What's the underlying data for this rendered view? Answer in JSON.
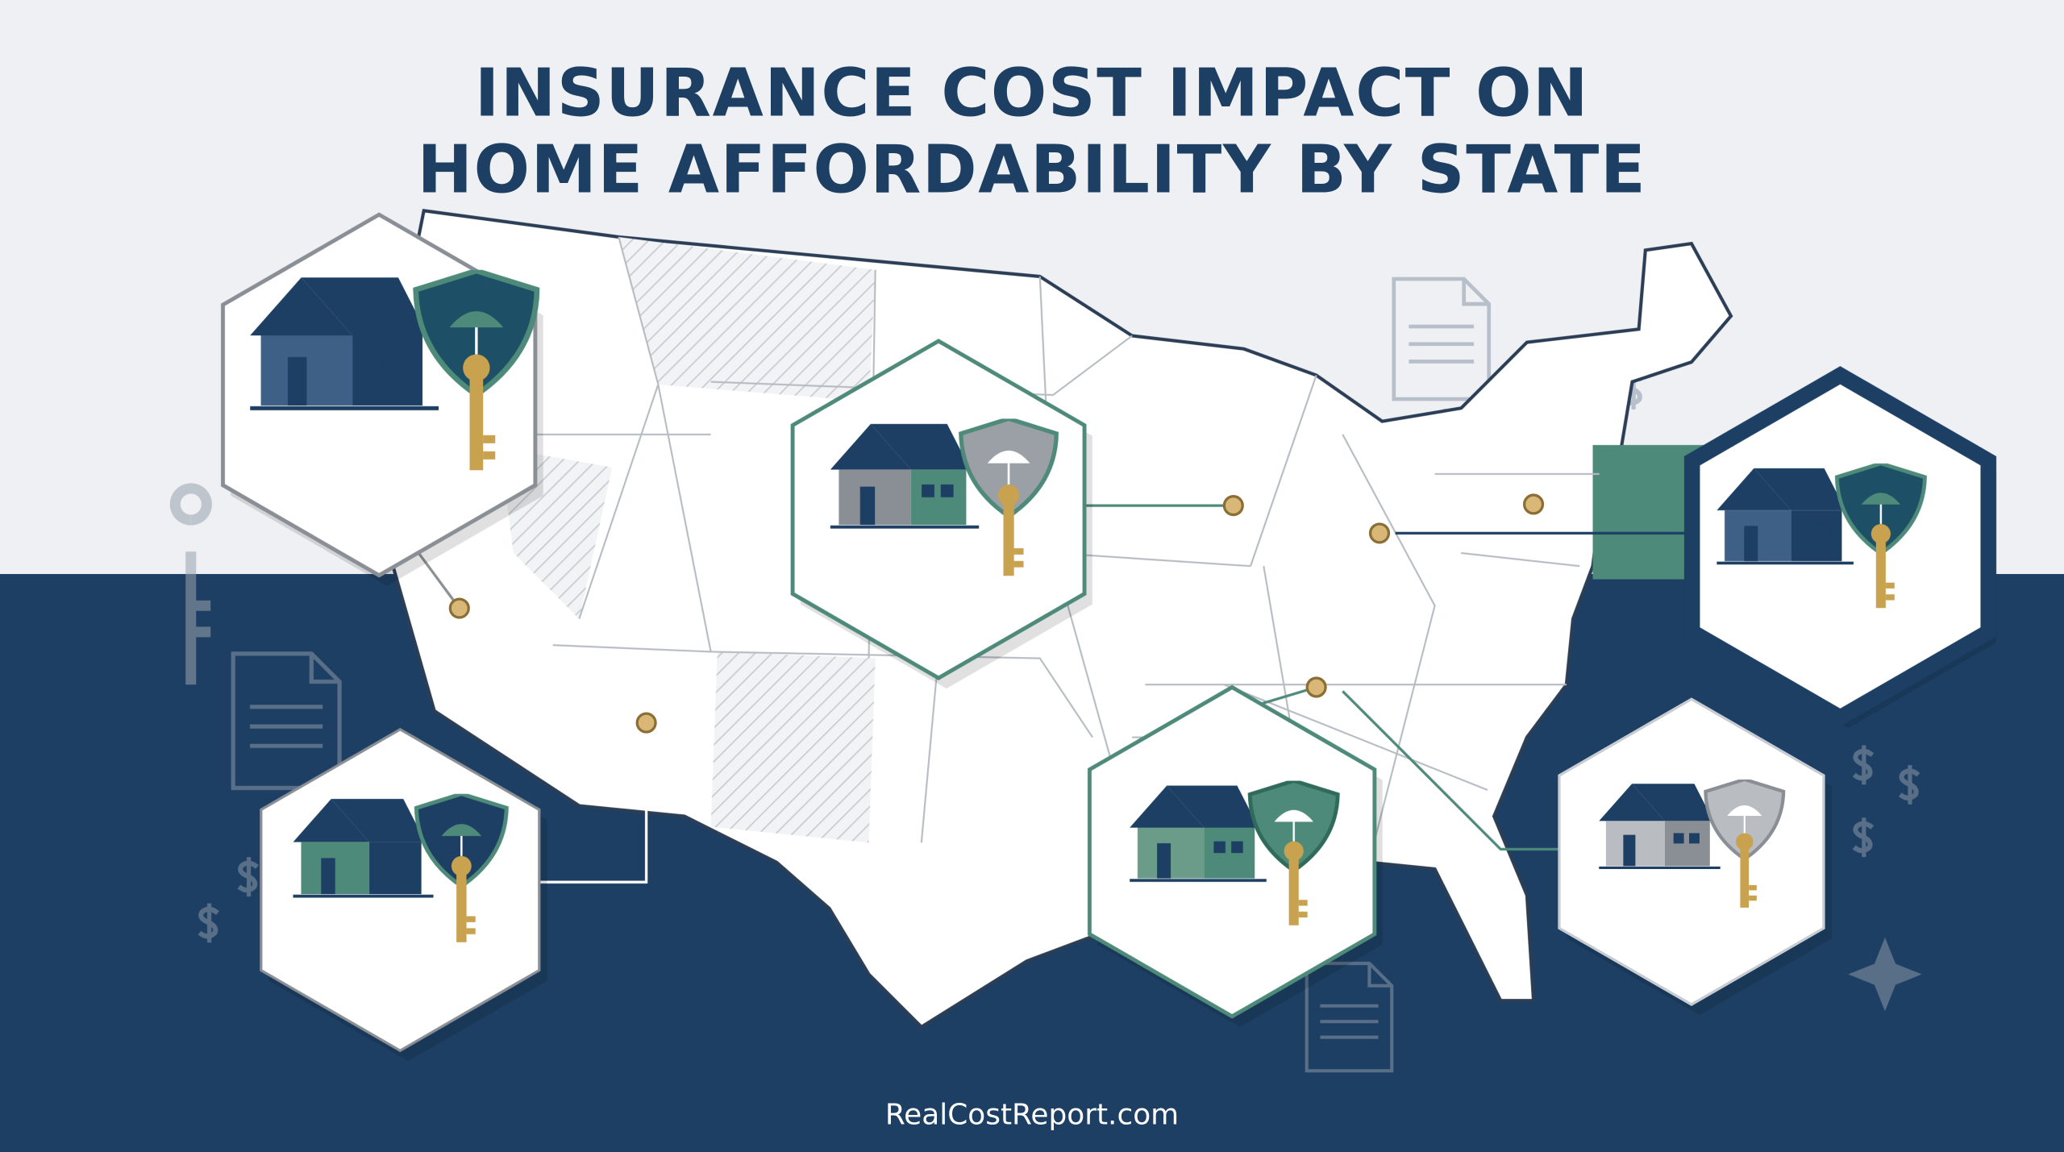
{
  "header": {
    "title_lines": [
      "INSURANCE COST IMPACT ON",
      "HOME AFFORDABILITY BY STATE"
    ]
  },
  "footer": {
    "url": "RealCostReport.com"
  }
}
